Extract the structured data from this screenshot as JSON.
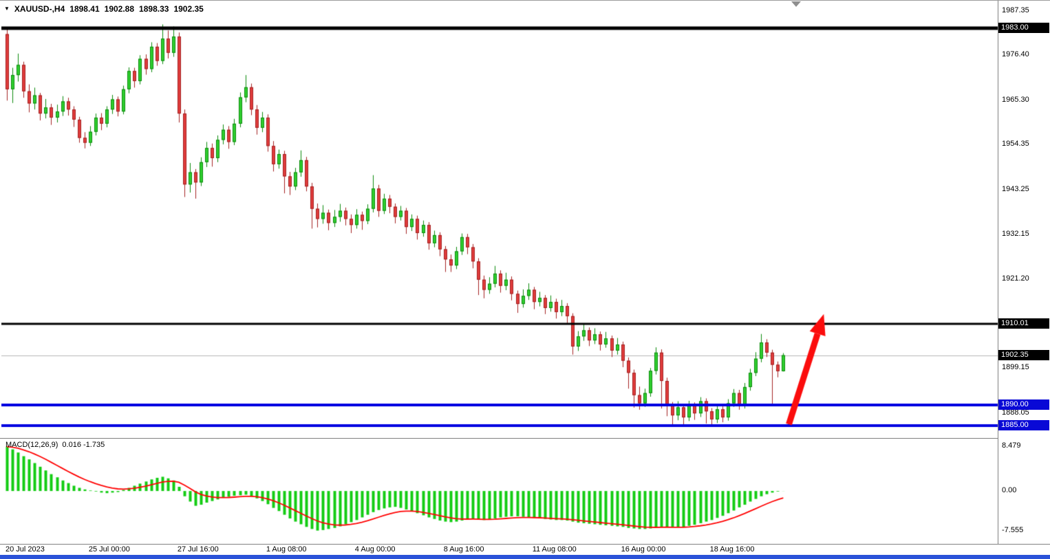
{
  "header": {
    "symbol": "XAUUSD-,H4",
    "open": "1898.41",
    "high": "1902.88",
    "low": "1898.33",
    "close": "1902.35"
  },
  "indicator": {
    "name": "MACD(12,26,9)",
    "values": "0.016 -1.735"
  },
  "colors": {
    "candle_up": "#2fce2f",
    "candle_up_border": "#0b8a0b",
    "candle_down": "#e03c3c",
    "candle_down_border": "#a32020",
    "hline_black": "#000000",
    "hline_blue": "#0000e0",
    "badge_black": "#000000",
    "badge_blue": "#0909d6",
    "current_price_line": "#b4b4b4",
    "macd_histogram": "#14cc14",
    "macd_signal": "#ff0000",
    "arrow": "#fb0d0d",
    "bottom_strip": "#2a52d8"
  },
  "chart_data": [
    {
      "type": "candlestick",
      "title": "XAUUSD- H4 price chart",
      "ylim": [
        1882.6,
        1988.5
      ],
      "y_ticks": [
        "1987.35",
        "1976.40",
        "1965.30",
        "1954.35",
        "1943.25",
        "1932.15",
        "1921.20",
        "1899.15",
        "1888.05"
      ],
      "x_ticks": [
        {
          "label": "20 Jul 2023",
          "index": 0
        },
        {
          "label": "25 Jul 00:00",
          "index": 15
        },
        {
          "label": "27 Jul 16:00",
          "index": 31
        },
        {
          "label": "1 Aug 08:00",
          "index": 47
        },
        {
          "label": "4 Aug 00:00",
          "index": 63
        },
        {
          "label": "8 Aug 16:00",
          "index": 79
        },
        {
          "label": "11 Aug 08:00",
          "index": 95
        },
        {
          "label": "16 Aug 00:00",
          "index": 111
        },
        {
          "label": "18 Aug 16:00",
          "index": 127
        }
      ],
      "hlines": [
        {
          "price": 1983.0,
          "width": 5,
          "colorKey": "hline_black"
        },
        {
          "price": 1910.01,
          "width": 3,
          "colorKey": "hline_black"
        },
        {
          "price": 1890.0,
          "width": 4,
          "colorKey": "hline_blue"
        },
        {
          "price": 1885.0,
          "width": 4,
          "colorKey": "hline_blue"
        }
      ],
      "badges": [
        {
          "label": "1983.00",
          "price": 1983.0,
          "colorKey": "badge_black"
        },
        {
          "label": "1910.01",
          "price": 1910.01,
          "colorKey": "badge_black"
        },
        {
          "label": "1902.35",
          "price": 1902.35,
          "colorKey": "badge_black"
        },
        {
          "label": "1890.00",
          "price": 1890.0,
          "colorKey": "badge_blue"
        },
        {
          "label": "1885.00",
          "price": 1885.0,
          "colorKey": "badge_blue"
        }
      ],
      "current_price": 1902.35,
      "annotations": [
        {
          "type": "arrow",
          "from": {
            "index": 141,
            "price": 1885.3
          },
          "to": {
            "index": 147.3,
            "price": 1912.5
          },
          "colorKey": "arrow"
        }
      ],
      "candles": [
        [
          1981.6,
          1983.2,
          1965.2,
          1968.0
        ],
        [
          1968.0,
          1973.3,
          1964.6,
          1971.5
        ],
        [
          1971.5,
          1976.8,
          1969.9,
          1974.0
        ],
        [
          1974.0,
          1974.8,
          1965.9,
          1967.5
        ],
        [
          1967.5,
          1969.2,
          1962.3,
          1964.5
        ],
        [
          1964.5,
          1968.4,
          1963.0,
          1966.5
        ],
        [
          1966.5,
          1967.1,
          1960.3,
          1962.0
        ],
        [
          1962.0,
          1965.6,
          1960.8,
          1963.5
        ],
        [
          1963.5,
          1964.4,
          1959.2,
          1961.0
        ],
        [
          1961.0,
          1964.2,
          1959.8,
          1962.5
        ],
        [
          1962.5,
          1966.3,
          1961.4,
          1965.0
        ],
        [
          1965.0,
          1965.9,
          1961.5,
          1963.0
        ],
        [
          1963.0,
          1963.8,
          1958.7,
          1960.5
        ],
        [
          1960.5,
          1961.2,
          1954.8,
          1956.0
        ],
        [
          1956.0,
          1957.4,
          1953.4,
          1954.8
        ],
        [
          1954.8,
          1958.9,
          1954.0,
          1957.5
        ],
        [
          1957.5,
          1962.0,
          1956.6,
          1961.0
        ],
        [
          1961.0,
          1962.1,
          1957.9,
          1959.5
        ],
        [
          1959.5,
          1963.8,
          1958.6,
          1963.0
        ],
        [
          1963.0,
          1966.6,
          1961.9,
          1965.5
        ],
        [
          1965.5,
          1966.2,
          1961.3,
          1962.5
        ],
        [
          1962.5,
          1968.9,
          1961.8,
          1968.0
        ],
        [
          1968.0,
          1973.4,
          1967.0,
          1972.5
        ],
        [
          1972.5,
          1973.3,
          1968.4,
          1970.0
        ],
        [
          1970.0,
          1976.4,
          1969.2,
          1975.5
        ],
        [
          1975.5,
          1976.6,
          1971.6,
          1973.0
        ],
        [
          1973.0,
          1979.6,
          1972.2,
          1978.5
        ],
        [
          1978.5,
          1979.4,
          1973.8,
          1975.0
        ],
        [
          1975.0,
          1984.0,
          1974.2,
          1980.5
        ],
        [
          1980.5,
          1982.5,
          1975.6,
          1977.0
        ],
        [
          1977.0,
          1983.5,
          1976.0,
          1981.0
        ],
        [
          1981.0,
          1982.0,
          1959.8,
          1962.0
        ],
        [
          1962.0,
          1963.0,
          1941.4,
          1944.5
        ],
        [
          1944.5,
          1949.8,
          1942.5,
          1947.5
        ],
        [
          1947.5,
          1948.3,
          1941.0,
          1945.0
        ],
        [
          1945.0,
          1951.2,
          1944.1,
          1950.0
        ],
        [
          1950.0,
          1955.0,
          1948.8,
          1953.5
        ],
        [
          1953.5,
          1954.6,
          1948.9,
          1951.0
        ],
        [
          1951.0,
          1956.6,
          1950.0,
          1955.5
        ],
        [
          1955.5,
          1959.3,
          1954.4,
          1958.0
        ],
        [
          1958.0,
          1958.9,
          1953.3,
          1955.0
        ],
        [
          1955.0,
          1960.7,
          1954.2,
          1959.5
        ],
        [
          1959.5,
          1967.2,
          1958.6,
          1966.0
        ],
        [
          1966.0,
          1971.5,
          1964.8,
          1968.5
        ],
        [
          1968.5,
          1969.4,
          1961.6,
          1963.0
        ],
        [
          1963.0,
          1964.1,
          1956.8,
          1958.5
        ],
        [
          1958.5,
          1962.4,
          1957.4,
          1961.0
        ],
        [
          1961.0,
          1961.8,
          1952.6,
          1954.0
        ],
        [
          1954.0,
          1955.2,
          1947.7,
          1949.5
        ],
        [
          1949.5,
          1953.1,
          1948.4,
          1952.0
        ],
        [
          1952.0,
          1952.8,
          1942.3,
          1946.5
        ],
        [
          1946.5,
          1947.6,
          1941.9,
          1944.0
        ],
        [
          1944.0,
          1948.6,
          1943.1,
          1947.5
        ],
        [
          1947.5,
          1952.9,
          1946.4,
          1950.5
        ],
        [
          1950.5,
          1951.3,
          1942.8,
          1944.0
        ],
        [
          1944.0,
          1944.9,
          1933.6,
          1938.5
        ],
        [
          1938.5,
          1939.8,
          1933.9,
          1936.0
        ],
        [
          1936.0,
          1939.4,
          1934.8,
          1937.5
        ],
        [
          1937.5,
          1938.3,
          1933.2,
          1935.0
        ],
        [
          1935.0,
          1938.2,
          1934.0,
          1936.5
        ],
        [
          1936.5,
          1939.7,
          1935.3,
          1938.0
        ],
        [
          1938.0,
          1938.8,
          1934.4,
          1936.0
        ],
        [
          1936.0,
          1937.1,
          1932.5,
          1934.5
        ],
        [
          1934.5,
          1938.4,
          1933.6,
          1937.0
        ],
        [
          1937.0,
          1937.8,
          1933.3,
          1935.5
        ],
        [
          1935.5,
          1939.6,
          1934.7,
          1938.5
        ],
        [
          1938.5,
          1946.8,
          1937.6,
          1943.5
        ],
        [
          1943.5,
          1944.4,
          1936.5,
          1938.0
        ],
        [
          1938.0,
          1942.2,
          1937.2,
          1941.0
        ],
        [
          1941.0,
          1941.9,
          1937.4,
          1939.0
        ],
        [
          1939.0,
          1939.8,
          1934.9,
          1936.5
        ],
        [
          1936.5,
          1939.2,
          1935.6,
          1938.0
        ],
        [
          1938.0,
          1938.7,
          1932.3,
          1934.0
        ],
        [
          1934.0,
          1937.1,
          1933.0,
          1936.0
        ],
        [
          1936.0,
          1936.8,
          1930.9,
          1932.5
        ],
        [
          1932.5,
          1935.6,
          1931.6,
          1934.5
        ],
        [
          1934.5,
          1935.2,
          1928.4,
          1930.0
        ],
        [
          1930.0,
          1933.1,
          1929.0,
          1932.0
        ],
        [
          1932.0,
          1932.7,
          1926.8,
          1928.5
        ],
        [
          1928.5,
          1929.3,
          1922.9,
          1926.0
        ],
        [
          1926.0,
          1927.2,
          1922.9,
          1924.5
        ],
        [
          1924.5,
          1929.1,
          1923.6,
          1928.0
        ],
        [
          1928.0,
          1932.4,
          1927.1,
          1931.5
        ],
        [
          1931.5,
          1932.3,
          1927.3,
          1929.0
        ],
        [
          1929.0,
          1929.8,
          1923.8,
          1925.5
        ],
        [
          1925.5,
          1926.3,
          1917.2,
          1921.0
        ],
        [
          1921.0,
          1922.0,
          1916.4,
          1918.5
        ],
        [
          1918.5,
          1921.6,
          1917.5,
          1920.0
        ],
        [
          1920.0,
          1924.4,
          1919.1,
          1922.5
        ],
        [
          1922.5,
          1923.3,
          1917.8,
          1919.5
        ],
        [
          1919.5,
          1922.7,
          1918.4,
          1921.0
        ],
        [
          1921.0,
          1921.8,
          1915.9,
          1917.5
        ],
        [
          1917.5,
          1918.3,
          1912.8,
          1915.0
        ],
        [
          1915.0,
          1918.6,
          1914.1,
          1917.0
        ],
        [
          1917.0,
          1920.1,
          1916.0,
          1918.5
        ],
        [
          1918.5,
          1919.2,
          1913.7,
          1915.5
        ],
        [
          1915.5,
          1918.0,
          1914.4,
          1916.5
        ],
        [
          1916.5,
          1917.2,
          1912.5,
          1914.0
        ],
        [
          1914.0,
          1917.1,
          1913.1,
          1915.5
        ],
        [
          1915.5,
          1916.3,
          1911.4,
          1913.0
        ],
        [
          1913.0,
          1916.0,
          1912.0,
          1914.5
        ],
        [
          1914.5,
          1915.2,
          1910.3,
          1912.0
        ],
        [
          1912.0,
          1912.7,
          1902.5,
          1904.5
        ],
        [
          1904.5,
          1908.3,
          1903.4,
          1907.0
        ],
        [
          1907.0,
          1910.0,
          1905.9,
          1908.5
        ],
        [
          1908.5,
          1909.2,
          1904.6,
          1906.0
        ],
        [
          1906.0,
          1909.0,
          1905.1,
          1907.5
        ],
        [
          1907.5,
          1908.2,
          1903.5,
          1905.0
        ],
        [
          1905.0,
          1908.1,
          1904.2,
          1906.5
        ],
        [
          1906.5,
          1907.2,
          1901.9,
          1903.5
        ],
        [
          1903.5,
          1906.6,
          1902.5,
          1905.0
        ],
        [
          1905.0,
          1905.7,
          1899.4,
          1901.0
        ],
        [
          1901.0,
          1901.8,
          1894.1,
          1898.0
        ],
        [
          1898.0,
          1898.8,
          1889.4,
          1892.5
        ],
        [
          1892.5,
          1894.6,
          1888.9,
          1890.5
        ],
        [
          1890.5,
          1894.1,
          1889.6,
          1893.0
        ],
        [
          1893.0,
          1899.2,
          1892.1,
          1898.5
        ],
        [
          1898.5,
          1904.3,
          1897.6,
          1903.0
        ],
        [
          1903.0,
          1903.8,
          1889.2,
          1896.0
        ],
        [
          1896.0,
          1896.8,
          1887.3,
          1890.0
        ],
        [
          1890.0,
          1890.8,
          1885.2,
          1887.5
        ],
        [
          1887.5,
          1891.0,
          1886.3,
          1889.5
        ],
        [
          1889.5,
          1890.2,
          1884.9,
          1887.0
        ],
        [
          1887.0,
          1891.1,
          1886.1,
          1890.0
        ],
        [
          1890.0,
          1890.7,
          1886.4,
          1888.0
        ],
        [
          1888.0,
          1892.0,
          1887.1,
          1891.0
        ],
        [
          1891.0,
          1891.7,
          1885.5,
          1888.5
        ],
        [
          1888.5,
          1889.3,
          1884.9,
          1886.5
        ],
        [
          1886.5,
          1890.1,
          1885.6,
          1889.0
        ],
        [
          1889.0,
          1889.7,
          1885.8,
          1887.0
        ],
        [
          1887.0,
          1891.5,
          1886.2,
          1890.5
        ],
        [
          1890.5,
          1894.0,
          1889.6,
          1893.0
        ],
        [
          1893.0,
          1893.8,
          1888.9,
          1890.0
        ],
        [
          1890.0,
          1895.5,
          1889.2,
          1894.5
        ],
        [
          1894.5,
          1899.0,
          1893.6,
          1898.0
        ],
        [
          1898.0,
          1903.1,
          1897.2,
          1901.5
        ],
        [
          1901.5,
          1907.6,
          1900.6,
          1905.5
        ],
        [
          1905.5,
          1906.3,
          1901.9,
          1903.0
        ],
        [
          1903.0,
          1903.7,
          1890.2,
          1900.0
        ],
        [
          1900.0,
          1900.8,
          1896.9,
          1898.4
        ],
        [
          1898.41,
          1902.88,
          1898.33,
          1902.35
        ]
      ]
    },
    {
      "type": "bar",
      "title": "MACD(12,26,9)",
      "macd_value": 0.016,
      "signal_value": -1.735,
      "ylim": [
        -9.5,
        9.4
      ],
      "y_ticks": [
        "8.479",
        "0.00",
        "-7.555"
      ],
      "values": [
        8.4,
        7.9,
        7.3,
        6.6,
        6.0,
        5.3,
        4.6,
        3.9,
        3.2,
        2.6,
        2.0,
        1.5,
        1.0,
        0.6,
        0.3,
        0.1,
        -0.1,
        -0.3,
        -0.4,
        -0.3,
        -0.2,
        0.2,
        0.6,
        1.0,
        1.4,
        1.8,
        2.2,
        2.5,
        2.7,
        2.4,
        2.0,
        0.8,
        -1.0,
        -2.0,
        -2.8,
        -2.6,
        -2.2,
        -1.9,
        -1.6,
        -1.3,
        -1.1,
        -0.9,
        -0.8,
        -0.7,
        -1.0,
        -1.4,
        -1.9,
        -2.5,
        -3.2,
        -3.8,
        -4.5,
        -5.2,
        -5.8,
        -6.3,
        -6.8,
        -7.2,
        -7.5,
        -7.4,
        -7.2,
        -7.0,
        -6.7,
        -6.3,
        -5.9,
        -5.5,
        -5.0,
        -4.5,
        -4.0,
        -3.6,
        -3.3,
        -3.1,
        -3.0,
        -3.2,
        -3.5,
        -3.8,
        -4.2,
        -4.6,
        -5.0,
        -5.3,
        -5.6,
        -5.8,
        -5.9,
        -5.8,
        -5.6,
        -5.4,
        -5.3,
        -5.4,
        -5.5,
        -5.4,
        -5.2,
        -5.0,
        -4.9,
        -4.8,
        -4.8,
        -4.9,
        -5.0,
        -5.1,
        -5.2,
        -5.3,
        -5.4,
        -5.5,
        -5.5,
        -5.6,
        -5.8,
        -6.0,
        -6.1,
        -6.2,
        -6.3,
        -6.4,
        -6.5,
        -6.6,
        -6.7,
        -6.8,
        -7.0,
        -7.1,
        -7.2,
        -7.2,
        -7.1,
        -6.9,
        -6.8,
        -6.8,
        -6.9,
        -6.9,
        -6.8,
        -6.6,
        -6.4,
        -6.1,
        -5.8,
        -5.5,
        -5.1,
        -4.7,
        -4.2,
        -3.7,
        -3.1,
        -2.6,
        -2.0,
        -1.5,
        -1.0,
        -0.6,
        -0.3,
        -0.1,
        0.016
      ]
    }
  ]
}
